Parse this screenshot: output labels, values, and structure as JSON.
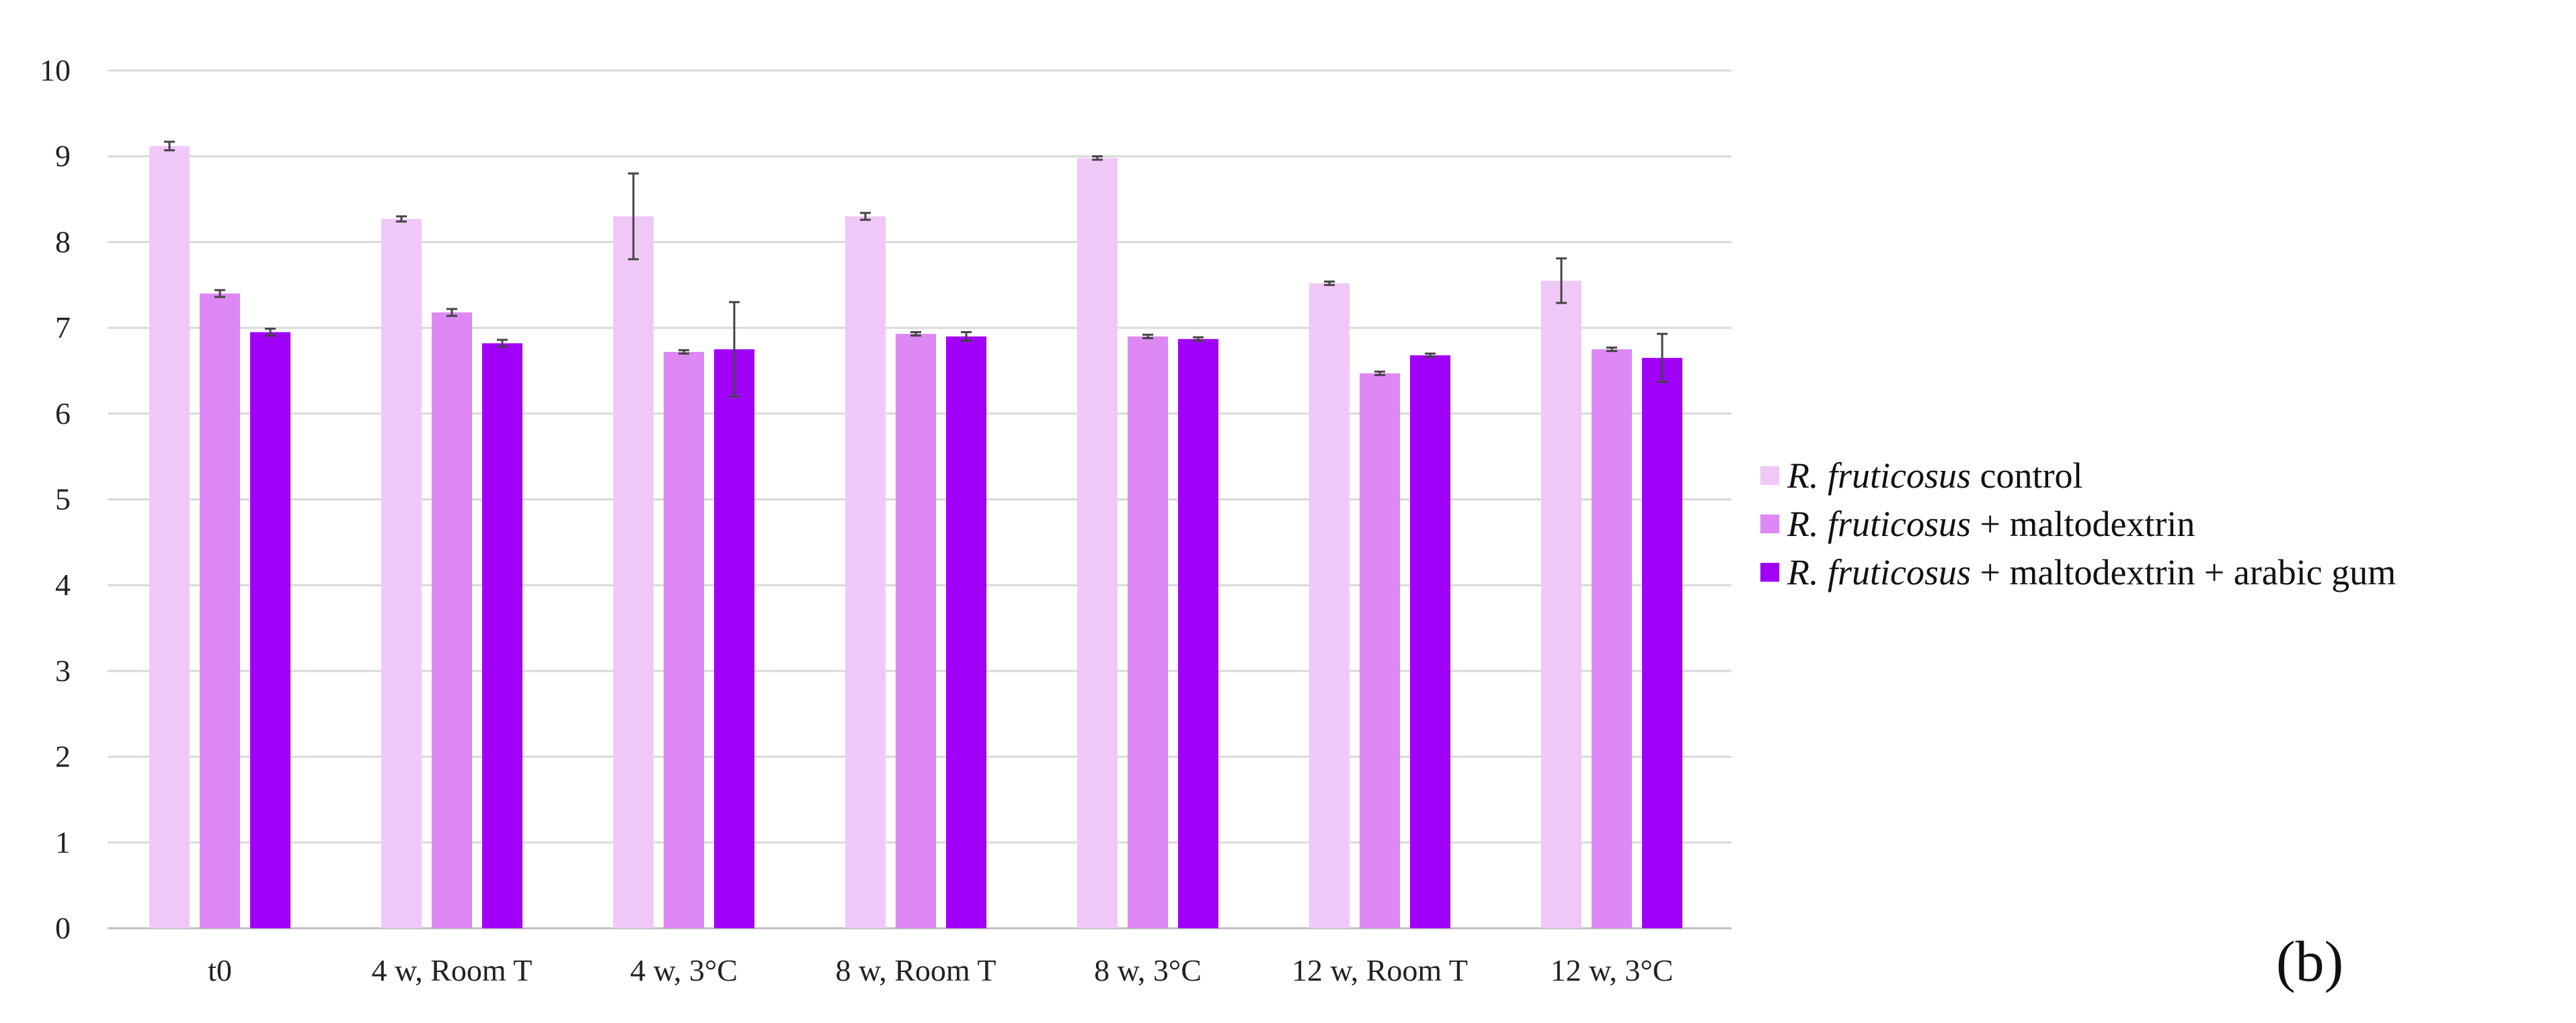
{
  "chart_data": {
    "type": "bar",
    "title": "",
    "xlabel": "",
    "ylabel": "",
    "ylim": [
      0,
      10
    ],
    "yticks": [
      0,
      1,
      2,
      3,
      4,
      5,
      6,
      7,
      8,
      9,
      10
    ],
    "grid": true,
    "legend_position": "right",
    "categories": [
      "t0",
      "4 w, Room T",
      "4 w, 3°C",
      "8 w, Room T",
      "8 w, 3°C",
      "12 w, Room T",
      "12 w, 3°C"
    ],
    "series": [
      {
        "name_italic": "R. fruticosus",
        "name_rest": " control",
        "color": "#f0c8f8",
        "values": [
          9.12,
          8.27,
          8.3,
          8.3,
          8.98,
          7.52,
          7.55
        ],
        "errors": [
          0.05,
          0.03,
          0.5,
          0.04,
          0.02,
          0.02,
          0.26
        ]
      },
      {
        "name_italic": "R. fruticosus",
        "name_rest": " + maltodextrin",
        "color": "#dd88f5",
        "values": [
          7.4,
          7.18,
          6.72,
          6.93,
          6.9,
          6.47,
          6.75
        ],
        "errors": [
          0.04,
          0.04,
          0.02,
          0.02,
          0.02,
          0.02,
          0.02
        ]
      },
      {
        "name_italic": "R. fruticosus",
        "name_rest": " + maltodextrin + arabic gum",
        "color": "#a000f8",
        "values": [
          6.95,
          6.82,
          6.75,
          6.9,
          6.87,
          6.68,
          6.65
        ],
        "errors": [
          0.04,
          0.04,
          0.55,
          0.05,
          0.02,
          0.02,
          0.28
        ]
      }
    ],
    "panel_label": "(b)"
  }
}
